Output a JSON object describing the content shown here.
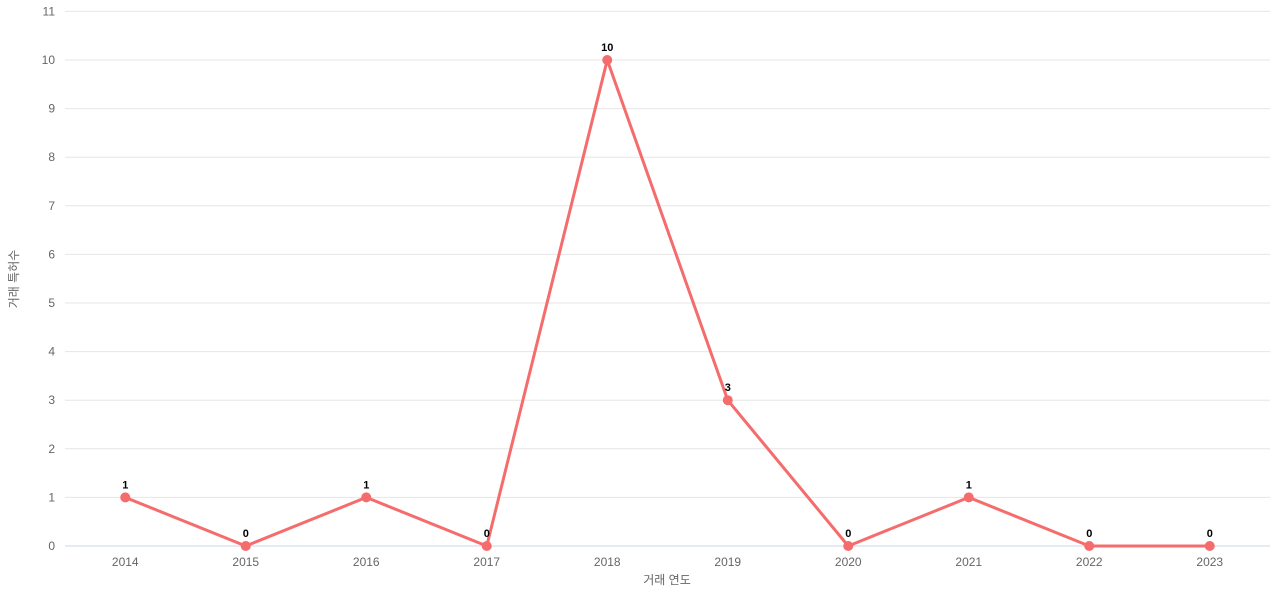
{
  "chart": {
    "title": "",
    "ylabel": "거래 특허수",
    "xlabel": "거래 연도"
  },
  "chart_data": {
    "type": "line",
    "categories": [
      "2014",
      "2015",
      "2016",
      "2017",
      "2018",
      "2019",
      "2020",
      "2021",
      "2022",
      "2023"
    ],
    "values": [
      1,
      0,
      1,
      0,
      10,
      3,
      0,
      1,
      0,
      0
    ],
    "data_labels": [
      "1",
      "0",
      "1",
      "0",
      "10",
      "3",
      "0",
      "1",
      "0",
      "0"
    ],
    "title": "",
    "xlabel": "거래 연도",
    "ylabel": "거래 특허수",
    "ylim": [
      0,
      11
    ],
    "ytick_step": 1,
    "yticks": [
      "0",
      "1",
      "2",
      "3",
      "4",
      "5",
      "6",
      "7",
      "8",
      "9",
      "10",
      "11"
    ],
    "grid": true,
    "legend": false,
    "colors": {
      "line": "#f56c6c",
      "marker": "#f56c6c",
      "grid_line": "#e6e6e6",
      "axis_line": "#ccd6eb",
      "tick_label": "#666666",
      "axis_title": "#666666",
      "data_label": "#000000",
      "background": "#ffffff"
    }
  }
}
